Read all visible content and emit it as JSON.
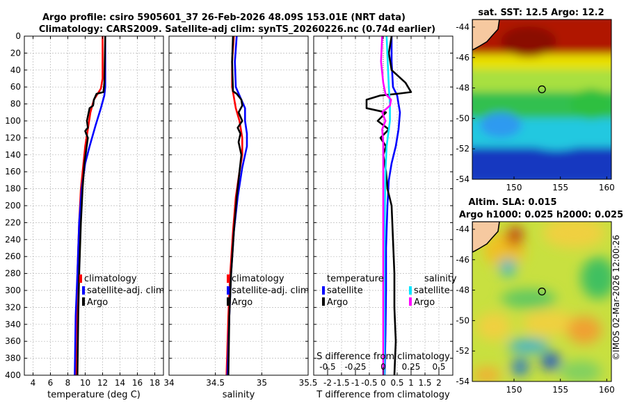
{
  "header": {
    "title_line1": "Argo profile: csiro 5905601_37 26-Feb-2026 48.09S 153.01E (NRT data)",
    "title_line2": "Climatology: CARS2009. Satellite-adj clim: synTS_20260226.nc (0.74d earlier)"
  },
  "watermark": "©IMOS 02-Mar-2026 12:00:26",
  "colors": {
    "climatology": "#ff0000",
    "satellite": "#0000ff",
    "argo": "#000000",
    "sat_salinity": "#00e5ff",
    "argo_salinity": "#ff00ff"
  },
  "legend": {
    "climatology": "climatology",
    "satellite_adj": "satellite-adj. clim",
    "argo": "Argo",
    "temperature": "temperature",
    "salinity": "salinity",
    "satellite": "satellite"
  },
  "chart_data": [
    {
      "id": "temperature-profile",
      "type": "line",
      "xlabel": "temperature (deg C)",
      "ylabel": "",
      "xlim": [
        3,
        19
      ],
      "ylim": [
        0,
        400
      ],
      "y_inverted": true,
      "xticks": [
        4,
        6,
        8,
        10,
        12,
        14,
        16,
        18
      ],
      "xtick_labels": [
        "4",
        "6",
        "8",
        "10",
        "12",
        "14",
        "16",
        "18"
      ],
      "yticks": [
        0,
        20,
        40,
        60,
        80,
        100,
        120,
        140,
        160,
        180,
        200,
        220,
        240,
        260,
        280,
        300,
        320,
        340,
        360,
        380,
        400
      ],
      "ytick_labels": [
        "0",
        "20",
        "40",
        "60",
        "80",
        "100",
        "120",
        "140",
        "160",
        "180",
        "200",
        "220",
        "240",
        "260",
        "280",
        "300",
        "320",
        "340",
        "360",
        "380",
        "400"
      ],
      "series": [
        {
          "name": "climatology",
          "color": "#ff0000",
          "points": [
            [
              12.0,
              0
            ],
            [
              12.0,
              50
            ],
            [
              11.8,
              62
            ],
            [
              11.0,
              75
            ],
            [
              10.6,
              90
            ],
            [
              10.3,
              110
            ],
            [
              10.0,
              130
            ],
            [
              9.8,
              150
            ],
            [
              9.5,
              180
            ],
            [
              9.3,
              220
            ],
            [
              9.1,
              280
            ],
            [
              9.0,
              330
            ],
            [
              8.9,
              400
            ]
          ]
        },
        {
          "name": "satellite-adj. clim",
          "color": "#0000ff",
          "points": [
            [
              12.3,
              0
            ],
            [
              12.3,
              60
            ],
            [
              12.2,
              70
            ],
            [
              11.8,
              85
            ],
            [
              11.2,
              105
            ],
            [
              10.5,
              130
            ],
            [
              10.0,
              150
            ],
            [
              9.6,
              180
            ],
            [
              9.3,
              220
            ],
            [
              9.1,
              280
            ],
            [
              8.9,
              330
            ],
            [
              8.8,
              400
            ]
          ]
        },
        {
          "name": "Argo",
          "color": "#000000",
          "points": [
            [
              12.3,
              0
            ],
            [
              12.2,
              55
            ],
            [
              12.1,
              66
            ],
            [
              11.3,
              68
            ],
            [
              11.0,
              75
            ],
            [
              10.9,
              82
            ],
            [
              10.5,
              85
            ],
            [
              10.2,
              100
            ],
            [
              10.3,
              108
            ],
            [
              10.0,
              112
            ],
            [
              10.3,
              120
            ],
            [
              10.1,
              135
            ],
            [
              9.9,
              150
            ],
            [
              9.7,
              180
            ],
            [
              9.5,
              220
            ],
            [
              9.3,
              280
            ],
            [
              9.2,
              330
            ],
            [
              9.1,
              400
            ]
          ]
        }
      ]
    },
    {
      "id": "salinity-profile",
      "type": "line",
      "xlabel": "salinity",
      "ylabel": "",
      "xlim": [
        34,
        35.5
      ],
      "ylim": [
        0,
        400
      ],
      "y_inverted": true,
      "xticks": [
        34,
        34.5,
        35,
        35.5
      ],
      "xtick_labels": [
        "34",
        "34.5",
        "35",
        "35.5"
      ],
      "series": [
        {
          "name": "climatology",
          "color": "#ff0000",
          "points": [
            [
              34.7,
              0
            ],
            [
              34.68,
              30
            ],
            [
              34.68,
              60
            ],
            [
              34.72,
              85
            ],
            [
              34.76,
              100
            ],
            [
              34.79,
              120
            ],
            [
              34.79,
              140
            ],
            [
              34.76,
              160
            ],
            [
              34.72,
              190
            ],
            [
              34.69,
              230
            ],
            [
              34.66,
              280
            ],
            [
              34.64,
              330
            ],
            [
              34.62,
              400
            ]
          ]
        },
        {
          "name": "satellite-adj. clim",
          "color": "#0000ff",
          "points": [
            [
              34.73,
              0
            ],
            [
              34.71,
              30
            ],
            [
              34.72,
              60
            ],
            [
              34.78,
              75
            ],
            [
              34.82,
              85
            ],
            [
              34.82,
              100
            ],
            [
              34.84,
              115
            ],
            [
              34.84,
              130
            ],
            [
              34.79,
              155
            ],
            [
              34.74,
              190
            ],
            [
              34.7,
              230
            ],
            [
              34.67,
              280
            ],
            [
              34.65,
              330
            ],
            [
              34.63,
              400
            ]
          ]
        },
        {
          "name": "Argo",
          "color": "#000000",
          "points": [
            [
              34.69,
              0
            ],
            [
              34.68,
              30
            ],
            [
              34.69,
              65
            ],
            [
              34.73,
              68
            ],
            [
              34.78,
              75
            ],
            [
              34.79,
              82
            ],
            [
              34.75,
              90
            ],
            [
              34.79,
              100
            ],
            [
              34.74,
              108
            ],
            [
              34.77,
              115
            ],
            [
              34.75,
              125
            ],
            [
              34.78,
              140
            ],
            [
              34.76,
              160
            ],
            [
              34.73,
              190
            ],
            [
              34.7,
              230
            ],
            [
              34.67,
              280
            ],
            [
              34.65,
              330
            ],
            [
              34.64,
              400
            ]
          ]
        }
      ]
    },
    {
      "id": "difference-profile",
      "type": "line",
      "xlabel": "T difference from climatology",
      "x2label": "S difference from climatology",
      "ylabel": "",
      "xlim": [
        -2.5,
        2.5
      ],
      "x2lim": [
        -0.625,
        0.625
      ],
      "ylim": [
        0,
        400
      ],
      "y_inverted": true,
      "xticks": [
        -2,
        -1.5,
        -1,
        -0.5,
        0,
        0.5,
        1,
        1.5,
        2
      ],
      "xtick_labels": [
        "-2",
        "-1.5",
        "-1",
        "-0.5",
        "0",
        "0.5",
        "1",
        "1.5",
        "2"
      ],
      "x2ticks": [
        -0.5,
        -0.25,
        0,
        0.25,
        0.5
      ],
      "x2tick_labels": [
        "-0.5",
        "-0.25",
        "0",
        "0.25",
        "0.5"
      ],
      "series": [
        {
          "name": "satellite (temperature)",
          "color": "#0000ff",
          "points": [
            [
              0.3,
              0
            ],
            [
              0.3,
              30
            ],
            [
              0.35,
              60
            ],
            [
              0.5,
              70
            ],
            [
              0.6,
              90
            ],
            [
              0.55,
              110
            ],
            [
              0.45,
              130
            ],
            [
              0.3,
              150
            ],
            [
              0.2,
              170
            ],
            [
              0.15,
              200
            ],
            [
              0.1,
              250
            ],
            [
              0.1,
              300
            ],
            [
              0.08,
              350
            ],
            [
              0.05,
              400
            ]
          ]
        },
        {
          "name": "Argo (temperature)",
          "color": "#000000",
          "points": [
            [
              0.3,
              0
            ],
            [
              0.2,
              20
            ],
            [
              0.3,
              40
            ],
            [
              0.8,
              55
            ],
            [
              1.0,
              66
            ],
            [
              0.5,
              68
            ],
            [
              -0.1,
              70
            ],
            [
              -0.6,
              75
            ],
            [
              -0.6,
              85
            ],
            [
              0.1,
              90
            ],
            [
              -0.2,
              100
            ],
            [
              0.2,
              110
            ],
            [
              -0.1,
              120
            ],
            [
              0.1,
              130
            ],
            [
              0.0,
              140
            ],
            [
              0.1,
              160
            ],
            [
              0.15,
              180
            ],
            [
              0.3,
              200
            ],
            [
              0.35,
              240
            ],
            [
              0.4,
              280
            ],
            [
              0.4,
              320
            ],
            [
              0.45,
              360
            ],
            [
              0.4,
              400
            ]
          ]
        },
        {
          "name": "satellite (salinity)",
          "color": "#00e5ff",
          "points": [
            [
              0.03,
              0
            ],
            [
              0.04,
              30
            ],
            [
              0.05,
              60
            ],
            [
              0.06,
              80
            ],
            [
              0.06,
              100
            ],
            [
              0.03,
              130
            ],
            [
              0.02,
              160
            ],
            [
              0.015,
              200
            ],
            [
              0.01,
              260
            ],
            [
              0.01,
              320
            ],
            [
              0.01,
              400
            ]
          ]
        },
        {
          "name": "Argo (salinity)",
          "color": "#ff00ff",
          "points": [
            [
              -0.01,
              0
            ],
            [
              -0.02,
              30
            ],
            [
              0.0,
              55
            ],
            [
              0.02,
              68
            ],
            [
              0.07,
              75
            ],
            [
              0.06,
              82
            ],
            [
              -0.01,
              90
            ],
            [
              0.02,
              100
            ],
            [
              -0.01,
              110
            ],
            [
              0.0,
              125
            ],
            [
              0.0,
              140
            ],
            [
              0.0,
              160
            ],
            [
              0.0,
              200
            ],
            [
              0.0,
              260
            ],
            [
              0.0,
              320
            ],
            [
              0.0,
              400
            ]
          ]
        }
      ]
    },
    {
      "id": "sst-map",
      "type": "heatmap",
      "title": "sat. SST: 12.5 Argo: 12.2",
      "xlim": [
        145.5,
        160.5
      ],
      "ylim": [
        -54,
        -43.5
      ],
      "xticks": [
        150,
        155,
        160
      ],
      "xtick_labels": [
        "150",
        "155",
        "160"
      ],
      "yticks": [
        -44,
        -46,
        -48,
        -50,
        -52,
        -54
      ],
      "ytick_labels": [
        "-44",
        "-46",
        "-48",
        "-50",
        "-52",
        "-54"
      ],
      "marker": {
        "lon": 153.01,
        "lat": -48.09
      }
    },
    {
      "id": "sla-map",
      "type": "heatmap",
      "title_line1": "Altim. SLA: 0.015",
      "title_line2": "Argo h1000: 0.025 h2000: 0.025",
      "xlim": [
        145.5,
        160.5
      ],
      "ylim": [
        -54,
        -43.5
      ],
      "xticks": [
        150,
        155,
        160
      ],
      "xtick_labels": [
        "150",
        "155",
        "160"
      ],
      "yticks": [
        -44,
        -46,
        -48,
        -50,
        -52,
        -54
      ],
      "ytick_labels": [
        "-44",
        "-46",
        "-48",
        "-50",
        "-52",
        "-54"
      ],
      "marker": {
        "lon": 153.01,
        "lat": -48.09
      }
    }
  ]
}
